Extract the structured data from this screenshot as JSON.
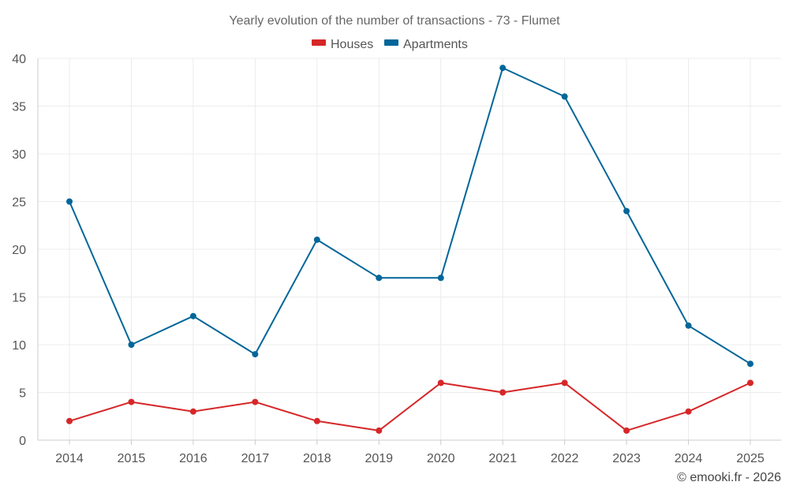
{
  "chart_data": {
    "type": "line",
    "title": "Yearly evolution of the number of transactions - 73 - Flumet",
    "categories": [
      "2014",
      "2015",
      "2016",
      "2017",
      "2018",
      "2019",
      "2020",
      "2021",
      "2022",
      "2023",
      "2024",
      "2025"
    ],
    "series": [
      {
        "name": "Houses",
        "color": "#d62728",
        "values": [
          2,
          4,
          3,
          4,
          2,
          1,
          6,
          5,
          6,
          1,
          3,
          6
        ]
      },
      {
        "name": "Apartments",
        "color": "#006699",
        "values": [
          25,
          10,
          13,
          9,
          21,
          17,
          17,
          39,
          36,
          24,
          12,
          8
        ]
      }
    ],
    "ylim": [
      0,
      40
    ],
    "yticks": [
      0,
      5,
      10,
      15,
      20,
      25,
      30,
      35,
      40
    ],
    "legend_position": "top-center",
    "grid": true,
    "credit": "© emooki.fr - 2026"
  }
}
